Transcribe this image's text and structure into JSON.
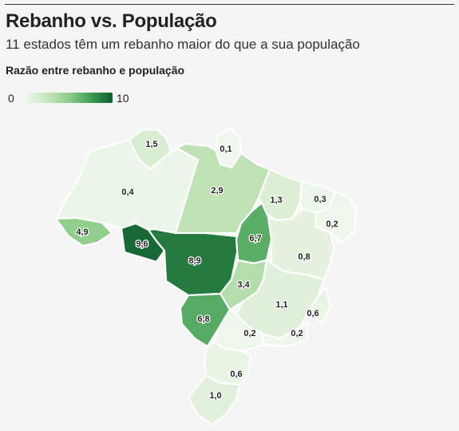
{
  "header": {
    "title": "Rebanho vs. População",
    "subtitle": "11 estados têm um rebanho maior do que a sua população",
    "legend_title": "Razão entre rebanho e população"
  },
  "legend": {
    "min_label": "0",
    "max_label": "10",
    "min": 0,
    "max": 10
  },
  "colors": {
    "scale": [
      "#f2f8f0",
      "#c8e6bd",
      "#8fce8a",
      "#3f9e54",
      "#0f5e2e"
    ],
    "border": "#ffffff",
    "background": "#f5f5f5"
  },
  "map_data": {
    "states": [
      {
        "id": "RR",
        "value": 1.5,
        "label": "1,5"
      },
      {
        "id": "AP",
        "value": 0.1,
        "label": "0,1"
      },
      {
        "id": "AM",
        "value": 0.4,
        "label": "0,4"
      },
      {
        "id": "PA",
        "value": 2.9,
        "label": "2,9"
      },
      {
        "id": "MA",
        "value": 1.3,
        "label": "1,3"
      },
      {
        "id": "CE",
        "value": 0.3,
        "label": "0,3"
      },
      {
        "id": "RN",
        "value": 0.2,
        "label": "0,2"
      },
      {
        "id": "AC",
        "value": 4.9,
        "label": "4,9"
      },
      {
        "id": "RO",
        "value": 9.6,
        "label": "9,6"
      },
      {
        "id": "MT",
        "value": 8.9,
        "label": "8,9"
      },
      {
        "id": "TO",
        "value": 6.7,
        "label": "6,7"
      },
      {
        "id": "BA",
        "value": 0.8,
        "label": "0,8"
      },
      {
        "id": "GO",
        "value": 3.4,
        "label": "3,4"
      },
      {
        "id": "MG",
        "value": 1.1,
        "label": "1,1"
      },
      {
        "id": "ES",
        "value": 0.6,
        "label": "0,6"
      },
      {
        "id": "MS",
        "value": 6.8,
        "label": "6,8"
      },
      {
        "id": "SP",
        "value": 0.2,
        "label": "0,2"
      },
      {
        "id": "RJ",
        "value": 0.2,
        "label": "0,2"
      },
      {
        "id": "PR",
        "value": 0.6,
        "label": "0,6"
      },
      {
        "id": "RS",
        "value": 1.0,
        "label": "1,0"
      }
    ]
  }
}
